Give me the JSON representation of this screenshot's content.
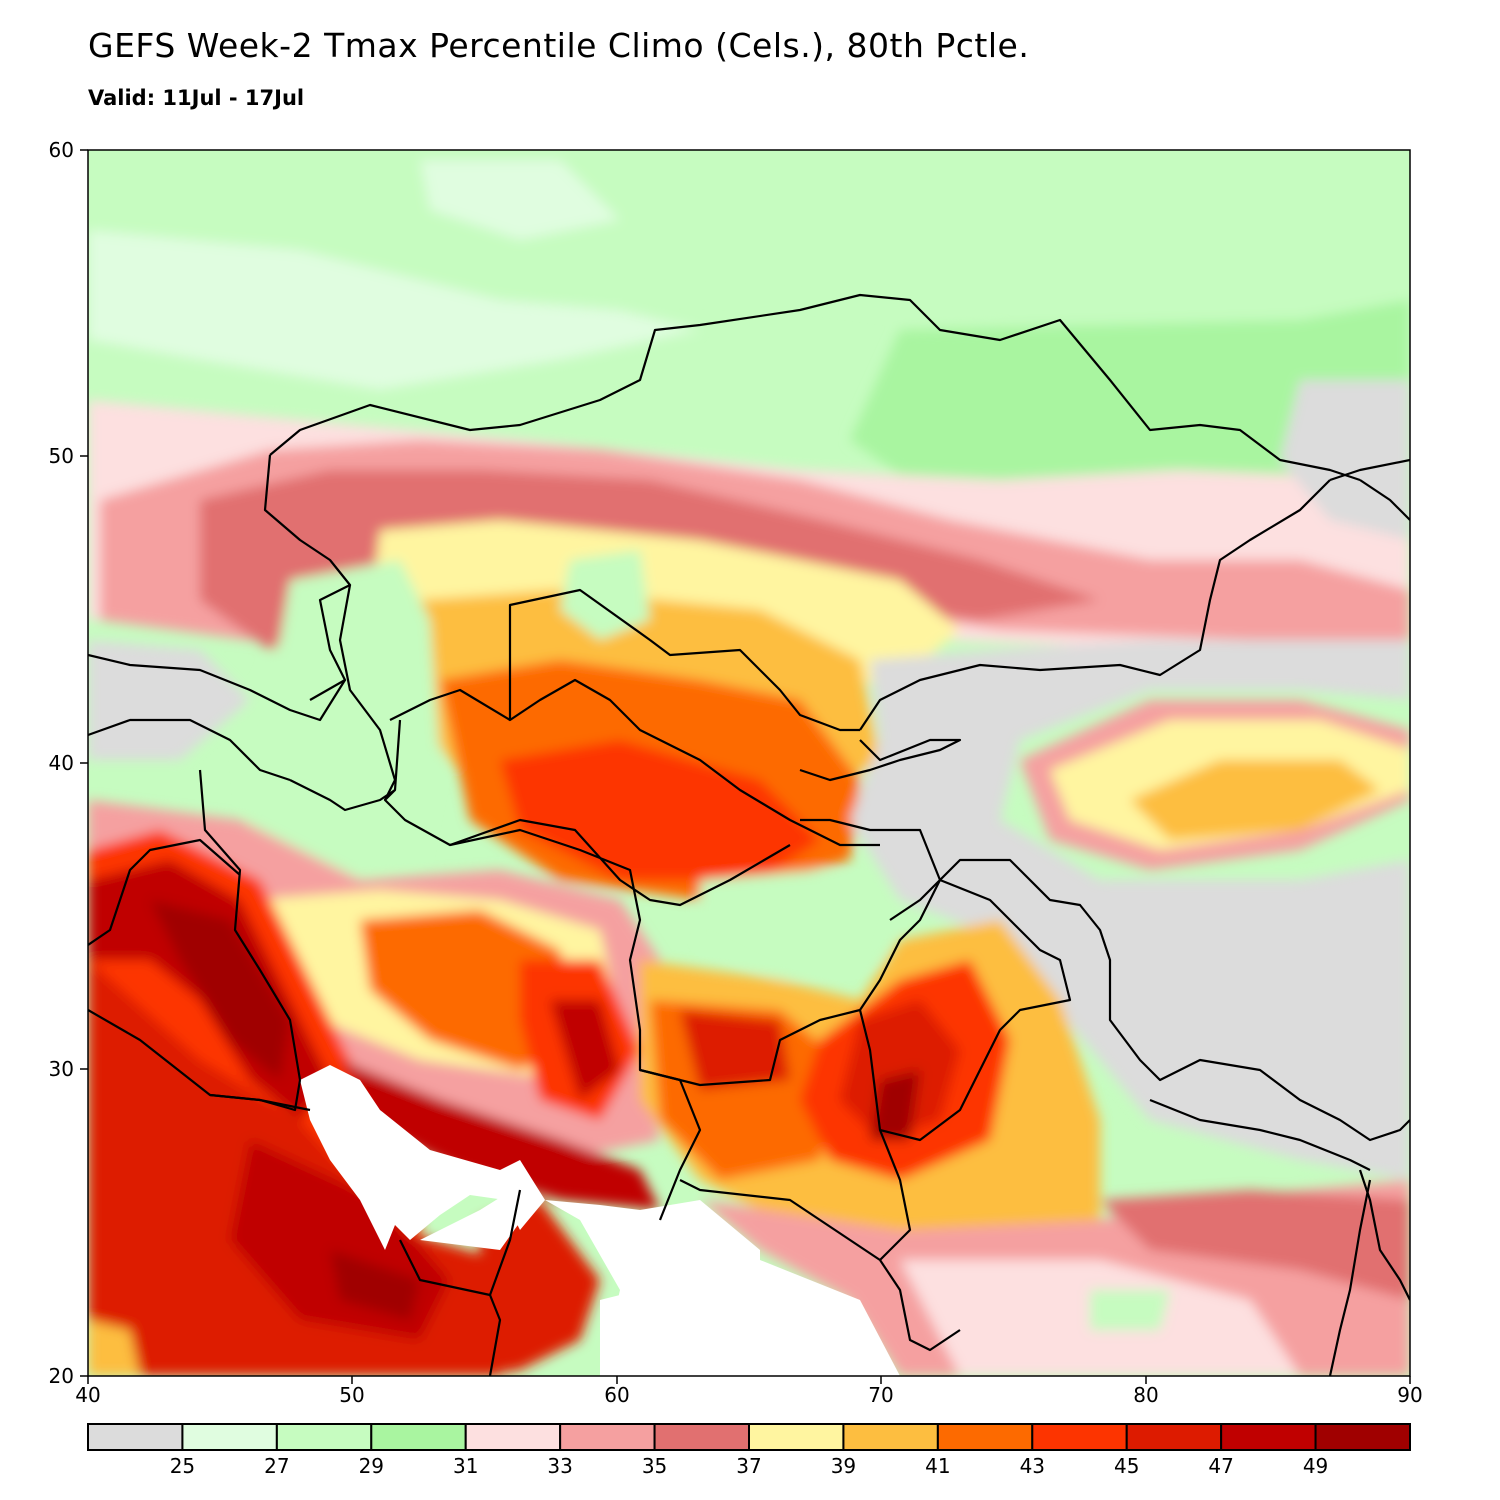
{
  "title": "GEFS Week-2 Tmax Percentile Climo (Cels.), 80th Pctle.",
  "subtitle": "Valid: 11Jul - 17Jul",
  "map": {
    "lon_range": [
      40,
      90
    ],
    "lat_range": [
      20,
      60
    ],
    "lon_ticks": [
      "40",
      "50",
      "60",
      "70",
      "80",
      "90"
    ],
    "lat_ticks": [
      "20",
      "30",
      "40",
      "50",
      "60"
    ]
  },
  "legend": {
    "labels": [
      "25",
      "27",
      "29",
      "31",
      "33",
      "35",
      "37",
      "39",
      "41",
      "43",
      "45",
      "47",
      "49"
    ],
    "colors": [
      "#dcdcdc",
      "#e0fde0",
      "#c6fcc0",
      "#a9f5a0",
      "#fde0e0",
      "#f5a0a0",
      "#e17070",
      "#fff5a0",
      "#fdbe40",
      "#fd6a00",
      "#fd3400",
      "#dd1b00",
      "#c00000",
      "#a00000"
    ]
  },
  "colors": {
    "ocean": "#ffffff",
    "border": "#000000"
  }
}
